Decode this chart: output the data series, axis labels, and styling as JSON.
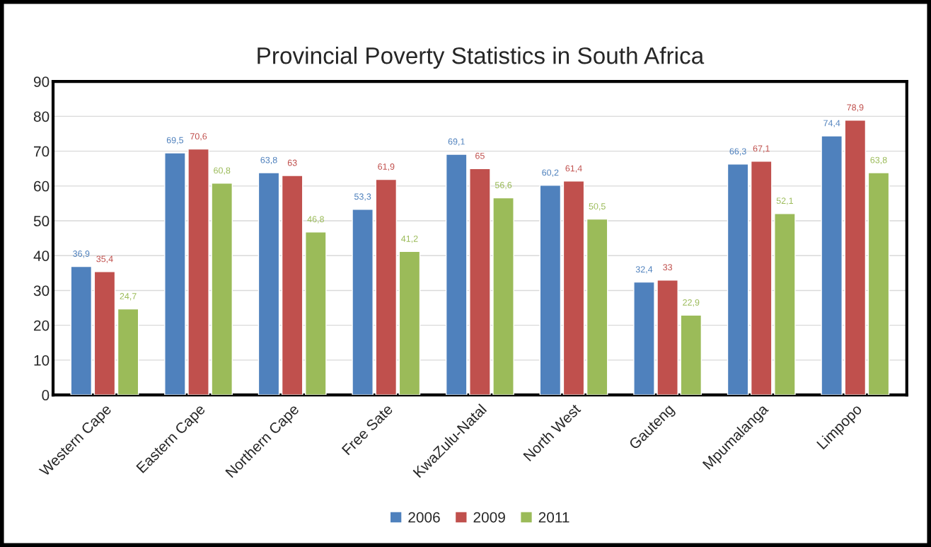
{
  "chart_data": {
    "type": "bar",
    "title": "Provincial Poverty Statistics in South Africa",
    "categories": [
      "Western Cape",
      "Eastern Cape",
      "Northern Cape",
      "Free Sate",
      "KwaZulu-Natal",
      "North West",
      "Gauteng",
      "Mpumalanga",
      "Limpopo"
    ],
    "series": [
      {
        "name": "2006",
        "color": "#4f81bd",
        "values": [
          36.9,
          69.5,
          63.8,
          53.3,
          69.1,
          60.2,
          32.4,
          66.3,
          74.4
        ],
        "value_labels": [
          "36,9",
          "69,5",
          "63,8",
          "53,3",
          "69,1",
          "60,2",
          "32,4",
          "66,3",
          "74,4"
        ]
      },
      {
        "name": "2009",
        "color": "#c0504d",
        "values": [
          35.4,
          70.6,
          63,
          61.9,
          65,
          61.4,
          33,
          67.1,
          78.9
        ],
        "value_labels": [
          "35,4",
          "70,6",
          "63",
          "61,9",
          "65",
          "61,4",
          "33",
          "67,1",
          "78,9"
        ]
      },
      {
        "name": "2011",
        "color": "#9bbb59",
        "values": [
          24.7,
          60.8,
          46.8,
          41.2,
          56.6,
          50.5,
          22.9,
          52.1,
          63.8
        ],
        "value_labels": [
          "24,7",
          "60,8",
          "46,8",
          "41,2",
          "56,6",
          "50,5",
          "22,9",
          "52,1",
          "63,8"
        ]
      }
    ],
    "ylim": [
      0,
      90
    ],
    "yticks": [
      0,
      10,
      20,
      30,
      40,
      50,
      60,
      70,
      80,
      90
    ],
    "grid": "y",
    "legend": "bottom"
  }
}
